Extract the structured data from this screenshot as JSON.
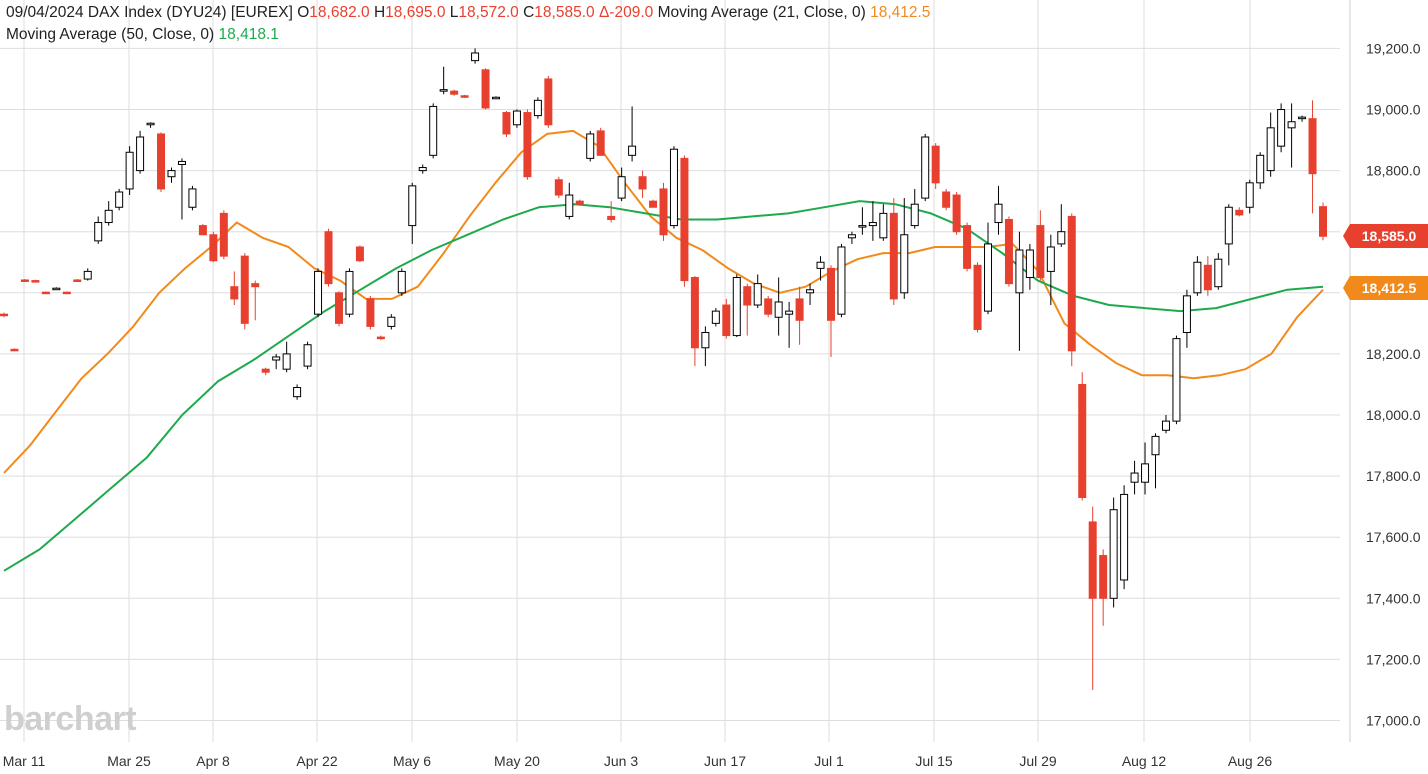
{
  "header": {
    "date": "09/04/2024",
    "symbol": "DAX Index (DYU24) [EUREX]",
    "open_prefix": "O",
    "open": "18,682.0",
    "high_prefix": "H",
    "high": "18,695.0",
    "low_prefix": "L",
    "low": "18,572.0",
    "close_prefix": "C",
    "close": "18,585.0",
    "change": "Δ-209.0",
    "ma21_label": "Moving Average  (21, Close, 0)",
    "ma21_value": "18,412.5",
    "ma50_label": "Moving Average  (50, Close, 0)",
    "ma50_value": "18,418.1"
  },
  "watermark": "barchart",
  "price_tags": {
    "close": "18,585.0",
    "ma21": "18,412.5"
  },
  "colors": {
    "up": "#ffffff",
    "up_border": "#000000",
    "down": "#e8402f",
    "ma21": "#f28a1b",
    "ma50": "#1eaa4c",
    "grid": "#dedede"
  },
  "chart_data": {
    "type": "candlestick",
    "title": "DAX Index (DYU24) [EUREX]",
    "ylim": [
      16900,
      19300
    ],
    "y_ticks": [
      "17,000.0",
      "17,200.0",
      "17,400.0",
      "17,600.0",
      "17,800.0",
      "18,000.0",
      "18,200.0",
      "18,400.0",
      "18,600.0",
      "18,800.0",
      "19,000.0",
      "19,200.0"
    ],
    "y_tick_values": [
      17000,
      17200,
      17400,
      17600,
      17800,
      18000,
      18200,
      18400,
      18600,
      18800,
      19000,
      19200
    ],
    "x_ticks": [
      "Mar 11",
      "Mar 25",
      "Apr 8",
      "Apr 22",
      "May 6",
      "May 20",
      "Jun 3",
      "Jun 17",
      "Jul 1",
      "Jul 15",
      "Jul 29",
      "Aug 12",
      "Aug 26"
    ],
    "grid": true,
    "candles": [
      {
        "date": "03-08",
        "o": 18330,
        "h": 18335,
        "l": 18320,
        "c": 18325
      },
      {
        "date": "03-11",
        "o": 18215,
        "h": 18218,
        "l": 18210,
        "c": 18212
      },
      {
        "date": "03-12",
        "o": 18442,
        "h": 18445,
        "l": 18438,
        "c": 18440
      },
      {
        "date": "03-13",
        "o": 18440,
        "h": 18443,
        "l": 18437,
        "c": 18438
      },
      {
        "date": "03-14",
        "o": 18402,
        "h": 18404,
        "l": 18398,
        "c": 18400
      },
      {
        "date": "03-15",
        "o": 18415,
        "h": 18418,
        "l": 18410,
        "c": 18415
      },
      {
        "date": "03-18",
        "o": 18402,
        "h": 18404,
        "l": 18398,
        "c": 18400
      },
      {
        "date": "03-19",
        "o": 18442,
        "h": 18445,
        "l": 18438,
        "c": 18440
      },
      {
        "date": "03-20",
        "o": 18445,
        "h": 18480,
        "l": 18440,
        "c": 18470
      },
      {
        "date": "03-21",
        "o": 18570,
        "h": 18650,
        "l": 18560,
        "c": 18630
      },
      {
        "date": "03-22",
        "o": 18630,
        "h": 18700,
        "l": 18620,
        "c": 18670
      },
      {
        "date": "03-25",
        "o": 18680,
        "h": 18740,
        "l": 18670,
        "c": 18730
      },
      {
        "date": "03-26",
        "o": 18740,
        "h": 18880,
        "l": 18720,
        "c": 18860
      },
      {
        "date": "03-27",
        "o": 18800,
        "h": 18930,
        "l": 18790,
        "c": 18910
      },
      {
        "date": "03-28",
        "o": 18950,
        "h": 18958,
        "l": 18940,
        "c": 18955
      },
      {
        "date": "04-02",
        "o": 18920,
        "h": 18925,
        "l": 18730,
        "c": 18740
      },
      {
        "date": "04-03",
        "o": 18780,
        "h": 18810,
        "l": 18760,
        "c": 18800
      },
      {
        "date": "04-04",
        "o": 18820,
        "h": 18840,
        "l": 18640,
        "c": 18830
      },
      {
        "date": "04-05",
        "o": 18680,
        "h": 18750,
        "l": 18670,
        "c": 18740
      },
      {
        "date": "04-08",
        "o": 18620,
        "h": 18625,
        "l": 18590,
        "c": 18590
      },
      {
        "date": "04-09",
        "o": 18590,
        "h": 18600,
        "l": 18500,
        "c": 18505
      },
      {
        "date": "04-10",
        "o": 18660,
        "h": 18670,
        "l": 18510,
        "c": 18520
      },
      {
        "date": "04-11",
        "o": 18420,
        "h": 18470,
        "l": 18360,
        "c": 18380
      },
      {
        "date": "04-12",
        "o": 18520,
        "h": 18530,
        "l": 18280,
        "c": 18300
      },
      {
        "date": "04-15",
        "o": 18430,
        "h": 18440,
        "l": 18310,
        "c": 18420
      },
      {
        "date": "04-16",
        "o": 18150,
        "h": 18155,
        "l": 18130,
        "c": 18140
      },
      {
        "date": "04-17",
        "o": 18180,
        "h": 18200,
        "l": 18150,
        "c": 18190
      },
      {
        "date": "04-18",
        "o": 18150,
        "h": 18240,
        "l": 18140,
        "c": 18200
      },
      {
        "date": "04-19",
        "o": 18060,
        "h": 18100,
        "l": 18050,
        "c": 18090
      },
      {
        "date": "04-22",
        "o": 18160,
        "h": 18240,
        "l": 18150,
        "c": 18230
      },
      {
        "date": "04-23",
        "o": 18330,
        "h": 18480,
        "l": 18320,
        "c": 18470
      },
      {
        "date": "04-24",
        "o": 18600,
        "h": 18610,
        "l": 18420,
        "c": 18430
      },
      {
        "date": "04-25",
        "o": 18400,
        "h": 18405,
        "l": 18290,
        "c": 18300
      },
      {
        "date": "04-26",
        "o": 18330,
        "h": 18480,
        "l": 18320,
        "c": 18470
      },
      {
        "date": "04-29",
        "o": 18550,
        "h": 18555,
        "l": 18500,
        "c": 18505
      },
      {
        "date": "04-30",
        "o": 18380,
        "h": 18390,
        "l": 18280,
        "c": 18290
      },
      {
        "date": "05-02",
        "o": 18255,
        "h": 18260,
        "l": 18245,
        "c": 18250
      },
      {
        "date": "05-03",
        "o": 18290,
        "h": 18330,
        "l": 18280,
        "c": 18320
      },
      {
        "date": "05-06",
        "o": 18400,
        "h": 18480,
        "l": 18390,
        "c": 18470
      },
      {
        "date": "05-07",
        "o": 18620,
        "h": 18760,
        "l": 18560,
        "c": 18750
      },
      {
        "date": "05-08",
        "o": 18800,
        "h": 18820,
        "l": 18790,
        "c": 18810
      },
      {
        "date": "05-09",
        "o": 18850,
        "h": 19020,
        "l": 18840,
        "c": 19010
      },
      {
        "date": "05-10",
        "o": 19060,
        "h": 19140,
        "l": 19050,
        "c": 19065
      },
      {
        "date": "05-13",
        "o": 19060,
        "h": 19065,
        "l": 19045,
        "c": 19050
      },
      {
        "date": "05-14",
        "o": 19045,
        "h": 19048,
        "l": 19038,
        "c": 19040
      },
      {
        "date": "05-15",
        "o": 19160,
        "h": 19200,
        "l": 19150,
        "c": 19185
      },
      {
        "date": "05-16",
        "o": 19130,
        "h": 19135,
        "l": 19000,
        "c": 19005
      },
      {
        "date": "05-17",
        "o": 19040,
        "h": 19043,
        "l": 19035,
        "c": 19040
      },
      {
        "date": "05-20",
        "o": 18990,
        "h": 18995,
        "l": 18910,
        "c": 18920
      },
      {
        "date": "05-21",
        "o": 18950,
        "h": 19000,
        "l": 18940,
        "c": 18995
      },
      {
        "date": "05-22",
        "o": 18990,
        "h": 19000,
        "l": 18770,
        "c": 18780
      },
      {
        "date": "05-23",
        "o": 18980,
        "h": 19040,
        "l": 18970,
        "c": 19030
      },
      {
        "date": "05-24",
        "o": 19100,
        "h": 19110,
        "l": 18940,
        "c": 18950
      },
      {
        "date": "05-27",
        "o": 18770,
        "h": 18780,
        "l": 18710,
        "c": 18720
      },
      {
        "date": "05-28",
        "o": 18650,
        "h": 18760,
        "l": 18640,
        "c": 18720
      },
      {
        "date": "05-29",
        "o": 18700,
        "h": 18705,
        "l": 18690,
        "c": 18690
      },
      {
        "date": "05-30",
        "o": 18840,
        "h": 18930,
        "l": 18830,
        "c": 18920
      },
      {
        "date": "05-31",
        "o": 18930,
        "h": 18940,
        "l": 18850,
        "c": 18850
      },
      {
        "date": "06-03",
        "o": 18650,
        "h": 18700,
        "l": 18630,
        "c": 18640
      },
      {
        "date": "06-04",
        "o": 18710,
        "h": 18810,
        "l": 18700,
        "c": 18780
      },
      {
        "date": "06-05",
        "o": 18850,
        "h": 19010,
        "l": 18830,
        "c": 18880
      },
      {
        "date": "06-06",
        "o": 18780,
        "h": 18800,
        "l": 18710,
        "c": 18740
      },
      {
        "date": "06-07",
        "o": 18700,
        "h": 18705,
        "l": 18680,
        "c": 18680
      },
      {
        "date": "06-10",
        "o": 18740,
        "h": 18760,
        "l": 18570,
        "c": 18590
      },
      {
        "date": "06-11",
        "o": 18620,
        "h": 18880,
        "l": 18610,
        "c": 18870
      },
      {
        "date": "06-12",
        "o": 18840,
        "h": 18850,
        "l": 18420,
        "c": 18440
      },
      {
        "date": "06-13",
        "o": 18450,
        "h": 18455,
        "l": 18160,
        "c": 18220
      },
      {
        "date": "06-14",
        "o": 18220,
        "h": 18290,
        "l": 18160,
        "c": 18270
      },
      {
        "date": "06-17",
        "o": 18300,
        "h": 18350,
        "l": 18290,
        "c": 18340
      },
      {
        "date": "06-18",
        "o": 18360,
        "h": 18380,
        "l": 18250,
        "c": 18260
      },
      {
        "date": "06-19",
        "o": 18260,
        "h": 18460,
        "l": 18255,
        "c": 18450
      },
      {
        "date": "06-20",
        "o": 18420,
        "h": 18430,
        "l": 18260,
        "c": 18360
      },
      {
        "date": "06-21",
        "o": 18360,
        "h": 18460,
        "l": 18350,
        "c": 18430
      },
      {
        "date": "06-24",
        "o": 18380,
        "h": 18390,
        "l": 18320,
        "c": 18330
      },
      {
        "date": "06-25",
        "o": 18320,
        "h": 18450,
        "l": 18260,
        "c": 18370
      },
      {
        "date": "06-26",
        "o": 18330,
        "h": 18370,
        "l": 18220,
        "c": 18340
      },
      {
        "date": "06-27",
        "o": 18380,
        "h": 18420,
        "l": 18230,
        "c": 18310
      },
      {
        "date": "06-28",
        "o": 18400,
        "h": 18430,
        "l": 18360,
        "c": 18410
      },
      {
        "date": "07-01",
        "o": 18480,
        "h": 18520,
        "l": 18440,
        "c": 18500
      },
      {
        "date": "07-02",
        "o": 18480,
        "h": 18490,
        "l": 18190,
        "c": 18310
      },
      {
        "date": "07-03",
        "o": 18330,
        "h": 18560,
        "l": 18320,
        "c": 18550
      },
      {
        "date": "07-04",
        "o": 18580,
        "h": 18600,
        "l": 18560,
        "c": 18590
      },
      {
        "date": "07-05",
        "o": 18620,
        "h": 18680,
        "l": 18590,
        "c": 18620
      },
      {
        "date": "07-08",
        "o": 18620,
        "h": 18700,
        "l": 18570,
        "c": 18630
      },
      {
        "date": "07-09",
        "o": 18580,
        "h": 18690,
        "l": 18570,
        "c": 18660
      },
      {
        "date": "07-10",
        "o": 18660,
        "h": 18710,
        "l": 18360,
        "c": 18380
      },
      {
        "date": "07-11",
        "o": 18400,
        "h": 18710,
        "l": 18380,
        "c": 18590
      },
      {
        "date": "07-12",
        "o": 18620,
        "h": 18740,
        "l": 18610,
        "c": 18690
      },
      {
        "date": "07-15",
        "o": 18710,
        "h": 18920,
        "l": 18700,
        "c": 18910
      },
      {
        "date": "07-16",
        "o": 18880,
        "h": 18890,
        "l": 18740,
        "c": 18760
      },
      {
        "date": "07-17",
        "o": 18730,
        "h": 18740,
        "l": 18670,
        "c": 18680
      },
      {
        "date": "07-18",
        "o": 18720,
        "h": 18730,
        "l": 18590,
        "c": 18600
      },
      {
        "date": "07-19",
        "o": 18620,
        "h": 18630,
        "l": 18470,
        "c": 18480
      },
      {
        "date": "07-22",
        "o": 18490,
        "h": 18500,
        "l": 18270,
        "c": 18280
      },
      {
        "date": "07-23",
        "o": 18340,
        "h": 18630,
        "l": 18330,
        "c": 18560
      },
      {
        "date": "07-24",
        "o": 18630,
        "h": 18750,
        "l": 18590,
        "c": 18690
      },
      {
        "date": "07-25",
        "o": 18640,
        "h": 18650,
        "l": 18420,
        "c": 18430
      },
      {
        "date": "07-26",
        "o": 18400,
        "h": 18600,
        "l": 18210,
        "c": 18540
      },
      {
        "date": "07-29",
        "o": 18450,
        "h": 18560,
        "l": 18410,
        "c": 18540
      },
      {
        "date": "07-30",
        "o": 18620,
        "h": 18670,
        "l": 18440,
        "c": 18450
      },
      {
        "date": "07-31",
        "o": 18470,
        "h": 18590,
        "l": 18360,
        "c": 18550
      },
      {
        "date": "08-01",
        "o": 18560,
        "h": 18690,
        "l": 18550,
        "c": 18600
      },
      {
        "date": "08-02",
        "o": 18650,
        "h": 18660,
        "l": 18160,
        "c": 18210
      },
      {
        "date": "08-05",
        "o": 18100,
        "h": 18140,
        "l": 17720,
        "c": 17730
      },
      {
        "date": "08-06",
        "o": 17650,
        "h": 17700,
        "l": 17100,
        "c": 17400
      },
      {
        "date": "08-07",
        "o": 17540,
        "h": 17560,
        "l": 17310,
        "c": 17400
      },
      {
        "date": "08-08",
        "o": 17400,
        "h": 17730,
        "l": 17370,
        "c": 17690
      },
      {
        "date": "08-09",
        "o": 17460,
        "h": 17770,
        "l": 17430,
        "c": 17740
      },
      {
        "date": "08-12",
        "o": 17780,
        "h": 17850,
        "l": 17740,
        "c": 17810
      },
      {
        "date": "08-13",
        "o": 17780,
        "h": 17910,
        "l": 17740,
        "c": 17840
      },
      {
        "date": "08-14",
        "o": 17870,
        "h": 17940,
        "l": 17760,
        "c": 17930
      },
      {
        "date": "08-15",
        "o": 17950,
        "h": 18000,
        "l": 17940,
        "c": 17980
      },
      {
        "date": "08-16",
        "o": 17980,
        "h": 18260,
        "l": 17970,
        "c": 18250
      },
      {
        "date": "08-19",
        "o": 18270,
        "h": 18410,
        "l": 18220,
        "c": 18390
      },
      {
        "date": "08-20",
        "o": 18400,
        "h": 18520,
        "l": 18390,
        "c": 18500
      },
      {
        "date": "08-21",
        "o": 18490,
        "h": 18520,
        "l": 18390,
        "c": 18410
      },
      {
        "date": "08-22",
        "o": 18420,
        "h": 18530,
        "l": 18410,
        "c": 18510
      },
      {
        "date": "08-23",
        "o": 18560,
        "h": 18690,
        "l": 18490,
        "c": 18680
      },
      {
        "date": "08-26",
        "o": 18670,
        "h": 18680,
        "l": 18650,
        "c": 18655
      },
      {
        "date": "08-27",
        "o": 18680,
        "h": 18770,
        "l": 18660,
        "c": 18760
      },
      {
        "date": "08-28",
        "o": 18760,
        "h": 18860,
        "l": 18740,
        "c": 18850
      },
      {
        "date": "08-29",
        "o": 18800,
        "h": 18990,
        "l": 18780,
        "c": 18940
      },
      {
        "date": "08-30",
        "o": 18880,
        "h": 19020,
        "l": 18860,
        "c": 19000
      },
      {
        "date": "09-02",
        "o": 18940,
        "h": 19020,
        "l": 18810,
        "c": 18960
      },
      {
        "date": "09-03",
        "o": 18970,
        "h": 18980,
        "l": 18960,
        "c": 18975
      },
      {
        "date": "09-03b",
        "o": 18970,
        "h": 19030,
        "l": 18660,
        "c": 18790
      },
      {
        "date": "09-04",
        "o": 18682,
        "h": 18695,
        "l": 18572,
        "c": 18585
      }
    ],
    "series": [
      {
        "name": "Moving Average  (21, Close, 0)",
        "color": "#f28a1b",
        "values": [
          17810,
          17900,
          18010,
          18120,
          18200,
          18290,
          18400,
          18480,
          18550,
          18630,
          18580,
          18550,
          18480,
          18440,
          18380,
          18380,
          18420,
          18530,
          18650,
          18760,
          18860,
          18920,
          18930,
          18880,
          18760,
          18650,
          18580,
          18540,
          18480,
          18430,
          18400,
          18420,
          18470,
          18510,
          18530,
          18530,
          18550,
          18550,
          18550,
          18560,
          18470,
          18300,
          18230,
          18170,
          18130,
          18130,
          18120,
          18130,
          18150,
          18200,
          18320,
          18410
        ]
      },
      {
        "name": "Moving Average  (50, Close, 0)",
        "color": "#1eaa4c",
        "values": [
          17490,
          17560,
          17660,
          17760,
          17860,
          18000,
          18110,
          18180,
          18260,
          18340,
          18410,
          18480,
          18540,
          18590,
          18640,
          18680,
          18690,
          18680,
          18660,
          18640,
          18640,
          18650,
          18660,
          18680,
          18700,
          18690,
          18660,
          18610,
          18530,
          18440,
          18390,
          18360,
          18350,
          18340,
          18350,
          18380,
          18410,
          18420
        ]
      }
    ]
  }
}
